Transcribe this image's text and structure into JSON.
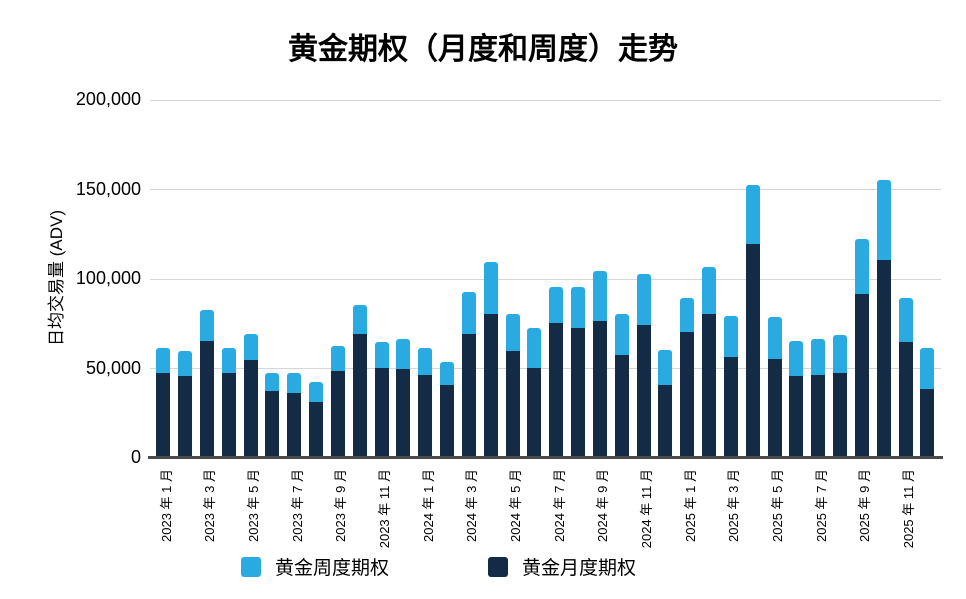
{
  "chart_data": {
    "type": "bar",
    "stacked": true,
    "title": "黄金期权（月度和周度）走势",
    "ylabel": "日均交易量 (ADV)",
    "ylim": [
      0,
      200000
    ],
    "yticks": [
      {
        "value": 0,
        "label": "0"
      },
      {
        "value": 50000,
        "label": "50,000"
      },
      {
        "value": 100000,
        "label": "100,000"
      },
      {
        "value": 150000,
        "label": "150,000"
      },
      {
        "value": 200000,
        "label": "200,000"
      }
    ],
    "grid": "horizontal",
    "gridline_color": "#D6D6D6",
    "axis_color": "#4A4A4A",
    "legend_position": "bottom",
    "x_label_interval": 2,
    "categories": [
      "2023 年 1 月",
      "2023 年 2 月",
      "2023 年 3 月",
      "2023 年 4 月",
      "2023 年 5 月",
      "2023 年 6 月",
      "2023 年 7 月",
      "2023 年 8 月",
      "2023 年 9 月",
      "2023 年 10 月",
      "2023 年 11 月",
      "2023 年 12 月",
      "2024 年 1 月",
      "2024 年 2 月",
      "2024 年 3 月",
      "2024 年 4 月",
      "2024 年 5 月",
      "2024 年 6 月",
      "2024 年 7 月",
      "2024 年 8 月",
      "2024 年 9 月",
      "2024 年 10 月",
      "2024 年 11 月",
      "2024 年 12 月",
      "2025 年 1 月",
      "2025 年 2 月",
      "2025 年 3 月",
      "2025 年 4 月",
      "2025 年 5 月",
      "2025 年 6 月",
      "2025 年 7 月",
      "2025 年 8 月",
      "2025 年 9 月",
      "2025 年 10 月",
      "2025 年 11 月",
      "2025 年 12 月"
    ],
    "series": [
      {
        "name": "黄金周度期权",
        "color": "#29ABE2",
        "stack_position": "top",
        "values": [
          14000,
          14000,
          17000,
          14000,
          15000,
          10000,
          11000,
          11000,
          14000,
          16000,
          14000,
          17000,
          15000,
          13000,
          23000,
          29000,
          21000,
          22000,
          20000,
          23000,
          28000,
          23000,
          28000,
          20000,
          19000,
          26000,
          23000,
          33000,
          23000,
          20000,
          20000,
          21000,
          31000,
          45000,
          25000,
          23000
        ]
      },
      {
        "name": "黄金月度期权",
        "color": "#132B45",
        "stack_position": "bottom",
        "values": [
          47000,
          45000,
          65000,
          47000,
          54000,
          37000,
          36000,
          31000,
          48000,
          69000,
          50000,
          49000,
          46000,
          40000,
          69000,
          80000,
          59000,
          50000,
          75000,
          72000,
          76000,
          57000,
          74000,
          40000,
          70000,
          80000,
          56000,
          119000,
          55000,
          45000,
          46000,
          47000,
          91000,
          110000,
          64000,
          38000
        ]
      }
    ]
  }
}
